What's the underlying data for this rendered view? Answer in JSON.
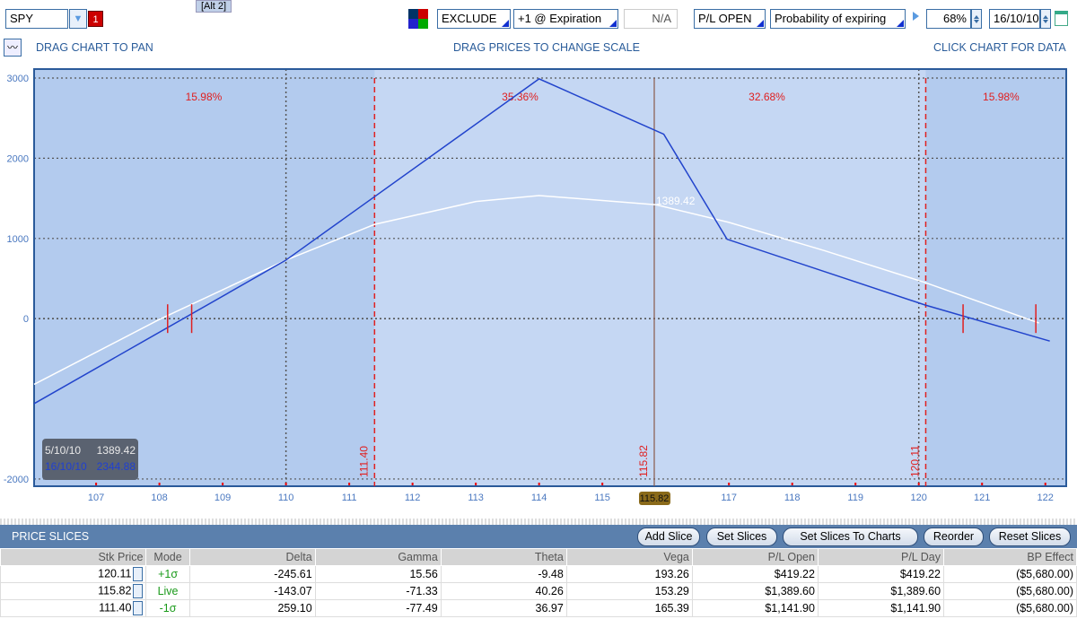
{
  "toolbar": {
    "symbol": "SPY",
    "symbol_badge": "1",
    "alt_label": "[Alt 2]",
    "commissions": "EXCLUDE",
    "price_lines": "+1 @ Expiration",
    "step": "N/A",
    "plot_type": "P/L OPEN",
    "prob_mode": "Probability of expiring",
    "prob_range": "68%",
    "prob_date": "16/10/10"
  },
  "hints": {
    "pan": "DRAG CHART TO PAN",
    "scale": "DRAG PRICES TO CHANGE SCALE",
    "data": "CLICK CHART FOR DATA"
  },
  "chart_data": {
    "type": "line",
    "xlim": [
      106.02,
      122.33
    ],
    "ylim": [
      -2090,
      3112
    ],
    "x_ticks": [
      "107",
      "108",
      "109",
      "110",
      "111",
      "112",
      "113",
      "114",
      "115",
      "117",
      "118",
      "119",
      "120",
      "121",
      "122"
    ],
    "y_ticks": [
      "3000",
      "2000",
      "1000",
      "0",
      "-2000"
    ],
    "grid": true,
    "series": [
      {
        "label": "16/10/10",
        "color": "#2244cc",
        "x": [
          106.02,
          110,
          114,
          115.97,
          116.97,
          120.1,
          122.07
        ],
        "y": [
          -1060,
          730,
          2990,
          2300,
          990,
          170,
          -280
        ]
      },
      {
        "label": "5/10/10",
        "color": "#ffffff",
        "x": [
          106.02,
          108,
          110,
          111.4,
          113,
          114,
          115.85,
          117,
          118.5,
          120.1,
          121.9
        ],
        "y": [
          -820,
          -10,
          730,
          1175,
          1460,
          1535,
          1420,
          1200,
          850,
          450,
          -55
        ]
      }
    ],
    "price_markers": [
      {
        "value": 111.4,
        "label": "111.40",
        "style": "dashed-red"
      },
      {
        "value": 115.82,
        "label": "115.82",
        "style": "solid-brown"
      },
      {
        "value": 120.11,
        "label": "120.11",
        "style": "dashed-red"
      }
    ],
    "breakevens": [
      108.13,
      108.51,
      120.7,
      121.85
    ],
    "region_probabilities": [
      {
        "label": "15.98%",
        "x": 108.7
      },
      {
        "label": "35.36%",
        "x": 113.7
      },
      {
        "label": "32.68%",
        "x": 117.6
      },
      {
        "label": "15.98%",
        "x": 121.3
      }
    ],
    "current_price_label": "115.82",
    "point_label": {
      "text": "1389.42",
      "x": 115.82,
      "y": 1389.42
    },
    "readout": [
      {
        "date": "5/10/10",
        "value": "1389.42"
      },
      {
        "date": "16/10/10",
        "value": "2344.88"
      }
    ]
  },
  "slices": {
    "title": "PRICE SLICES",
    "buttons": [
      "Add Slice",
      "Set Slices",
      "Set Slices To Charts",
      "Reorder",
      "Reset Slices"
    ],
    "columns": [
      "Stk Price",
      "Mode",
      "Delta",
      "Gamma",
      "Theta",
      "Vega",
      "P/L Open",
      "P/L Day",
      "BP Effect"
    ],
    "rows": [
      [
        "120.11",
        "+1σ",
        "-245.61",
        "15.56",
        "-9.48",
        "193.26",
        "$419.22",
        "$419.22",
        "($5,680.00)"
      ],
      [
        "115.82",
        "Live",
        "-143.07",
        "-71.33",
        "40.26",
        "153.29",
        "$1,389.60",
        "$1,389.60",
        "($5,680.00)"
      ],
      [
        "111.40",
        "-1σ",
        "259.10",
        "-77.49",
        "36.97",
        "165.39",
        "$1,141.90",
        "$1,141.90",
        "($5,680.00)"
      ]
    ]
  }
}
